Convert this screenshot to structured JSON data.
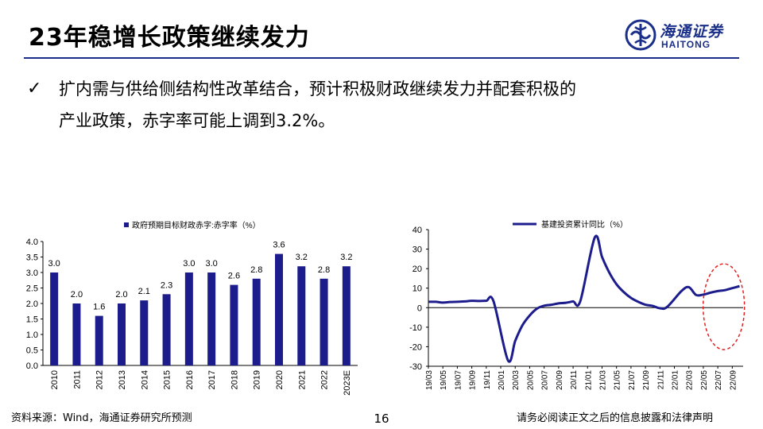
{
  "slide": {
    "title": "23年稳增长政策继续发力",
    "bullet": {
      "line1": "扩内需与供给侧结构性改革结合，预计积极财政继续发力并配套积极的",
      "line2": "产业政策，赤字率可能上调到3.2%。"
    },
    "logo": {
      "cn": "海通证券",
      "en": "HAITONG"
    },
    "footer": {
      "source": "资料来源：Wind，海通证券研究所预测",
      "page": "16",
      "disclaimer": "请务必阅读正文之后的信息披露和法律声明"
    },
    "colors": {
      "accent": "#1a2f8a",
      "series": "#1c1c8c",
      "highlight": "#e02020"
    }
  },
  "chart_data": [
    {
      "type": "bar",
      "legend": "政府预期目标财政赤字:赤字率（%）",
      "categories": [
        "2010",
        "2011",
        "2012",
        "2013",
        "2014",
        "2015",
        "2016",
        "2017",
        "2018",
        "2019",
        "2020",
        "2021",
        "2022",
        "2023E"
      ],
      "values": [
        3.0,
        2.0,
        1.6,
        2.0,
        2.1,
        2.3,
        3.0,
        3.0,
        2.6,
        2.8,
        3.6,
        3.2,
        2.8,
        3.2
      ],
      "data_labels": [
        "3.0",
        "2.0",
        "1.6",
        "2.0",
        "2.1",
        "2.3",
        "3.0",
        "3.0",
        "2.6",
        "2.8",
        "3.6",
        "3.2",
        "2.8",
        "3.2"
      ],
      "ylim": [
        0,
        4.0
      ],
      "yticks": [
        "0.0",
        "0.5",
        "1.0",
        "1.5",
        "2.0",
        "2.5",
        "3.0",
        "3.5",
        "4.0"
      ]
    },
    {
      "type": "line",
      "legend": "基建投资累计同比（%）",
      "ylim": [
        -30,
        40
      ],
      "yticks": [
        "-30",
        "-20",
        "-10",
        "0",
        "10",
        "20",
        "30",
        "40"
      ],
      "xticks": [
        "19/03",
        "19/05",
        "19/07",
        "19/09",
        "19/11",
        "20/01",
        "20/03",
        "20/05",
        "20/07",
        "20/09",
        "20/11",
        "21/01",
        "21/03",
        "21/05",
        "21/07",
        "21/09",
        "21/11",
        "22/01",
        "22/03",
        "22/05",
        "22/07",
        "22/09"
      ],
      "x": [
        "19/03",
        "19/04",
        "19/05",
        "19/06",
        "19/07",
        "19/08",
        "19/09",
        "19/10",
        "19/11",
        "19/12",
        "20/02",
        "20/03",
        "20/04",
        "20/05",
        "20/06",
        "20/07",
        "20/08",
        "20/09",
        "20/10",
        "20/11",
        "20/12",
        "21/02",
        "21/03",
        "21/04",
        "21/05",
        "21/06",
        "21/07",
        "21/08",
        "21/09",
        "21/10",
        "21/11",
        "21/12",
        "22/02",
        "22/03",
        "22/04",
        "22/05",
        "22/06",
        "22/07",
        "22/08",
        "22/09",
        "22/10"
      ],
      "values": [
        3.0,
        3.0,
        2.6,
        2.9,
        3.0,
        3.2,
        3.5,
        3.4,
        3.5,
        3.3,
        -27.0,
        -17.0,
        -9.0,
        -4.0,
        -0.5,
        1.0,
        1.5,
        2.2,
        2.5,
        3.2,
        3.4,
        36.0,
        26.0,
        18.0,
        12.0,
        8.0,
        5.0,
        3.0,
        1.5,
        0.9,
        -0.3,
        0.4,
        8.6,
        10.5,
        6.5,
        6.7,
        7.7,
        8.5,
        9.0,
        10.0,
        11.0
      ],
      "annotation": "dashed-ellipse highlighting 22/05–22/09"
    }
  ]
}
